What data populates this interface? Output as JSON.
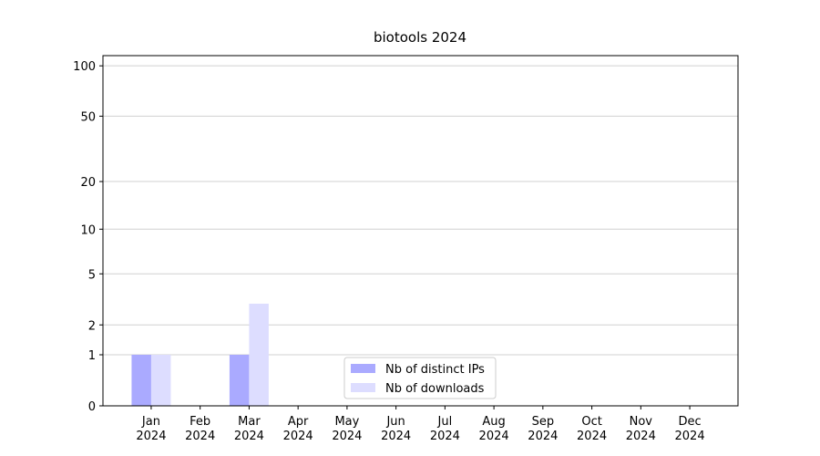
{
  "chart_data": {
    "type": "bar",
    "title": "biotools 2024",
    "categories": [
      "Jan 2024",
      "Feb 2024",
      "Mar 2024",
      "Apr 2024",
      "May 2024",
      "Jun 2024",
      "Jul 2024",
      "Aug 2024",
      "Sep 2024",
      "Oct 2024",
      "Nov 2024",
      "Dec 2024"
    ],
    "series": [
      {
        "name": "Nb of distinct IPs",
        "color": "#aaaaff",
        "values": [
          1,
          0,
          1,
          0,
          0,
          0,
          0,
          0,
          0,
          0,
          0,
          0
        ]
      },
      {
        "name": "Nb of downloads",
        "color": "#ddddff",
        "values": [
          1,
          0,
          3,
          0,
          0,
          0,
          0,
          0,
          0,
          0,
          0,
          0
        ]
      }
    ],
    "y_scale": "log1p",
    "ylim": [
      0,
      115
    ],
    "yticks": [
      0,
      1,
      2,
      5,
      10,
      20,
      50,
      100
    ],
    "grid": true,
    "legend": "lower center"
  }
}
